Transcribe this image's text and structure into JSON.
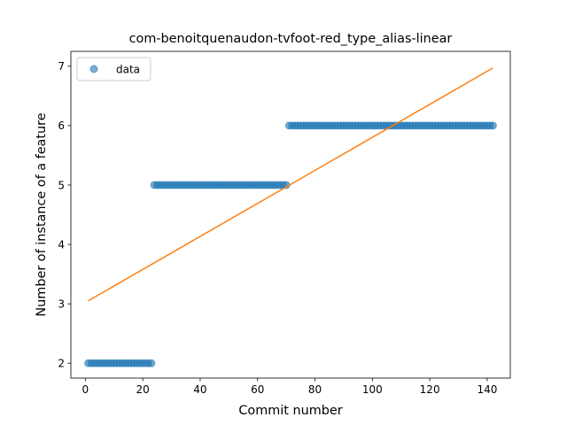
{
  "chart_data": {
    "type": "scatter",
    "title": "com-benoitquenaudon-tvfoot-red_type_alias-linear",
    "xlabel": "Commit number",
    "ylabel": "Number of instance of a feature",
    "xlim": [
      -5.05,
      148.05
    ],
    "ylim": [
      1.75,
      7.25
    ],
    "xticks": [
      0,
      20,
      40,
      60,
      80,
      100,
      120,
      140
    ],
    "yticks": [
      2,
      3,
      4,
      5,
      6,
      7
    ],
    "grid": false,
    "legend": {
      "position": "top-left",
      "entries": [
        "data"
      ]
    },
    "series": [
      {
        "name": "data",
        "kind": "scatter",
        "color": "#1f77b4",
        "segments": [
          {
            "x_from": 1,
            "x_to": 23,
            "y": 2
          },
          {
            "x_from": 24,
            "x_to": 70,
            "y": 5
          },
          {
            "x_from": 71,
            "x_to": 142,
            "y": 6
          }
        ]
      },
      {
        "kind": "line",
        "color": "#ff7f0e",
        "x": [
          1,
          142
        ],
        "y": [
          3.05,
          6.97
        ]
      }
    ]
  }
}
